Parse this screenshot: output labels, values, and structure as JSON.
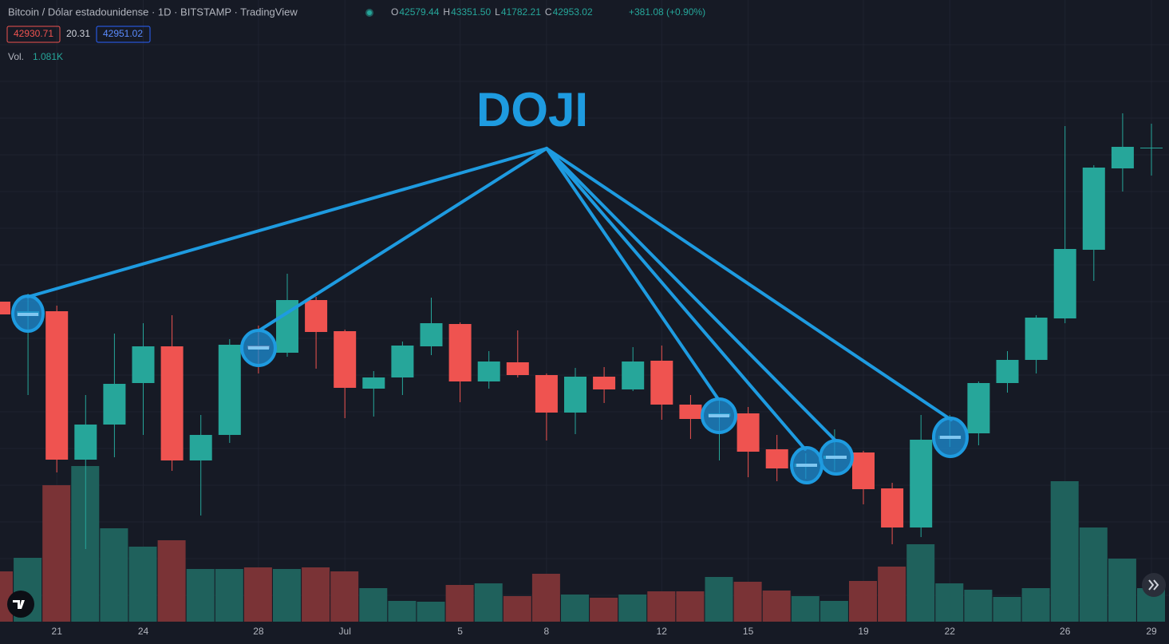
{
  "header": {
    "symbol": "Bitcoin / Dólar estadounidense · 1D · BITSTAMP · TradingView",
    "ohlc": [
      {
        "label": "O",
        "value": "42579.44"
      },
      {
        "label": "H",
        "value": "43351.50"
      },
      {
        "label": "L",
        "value": "41782.21"
      },
      {
        "label": "C",
        "value": "42953.02"
      }
    ],
    "change": "+381.08 (+0.90%)",
    "bid": "42930.71",
    "spread": "20.31",
    "ask": "42951.02",
    "volume_label": "Vol.",
    "volume_value": "1.081K"
  },
  "chart_data": {
    "type": "candlestick",
    "annotation": "DOJI",
    "categories": [
      null,
      null,
      "21",
      null,
      null,
      "24",
      null,
      null,
      null,
      "28",
      null,
      null,
      "Jul",
      null,
      null,
      null,
      "5",
      null,
      null,
      "8",
      null,
      null,
      null,
      "12",
      null,
      null,
      "15",
      null,
      null,
      null,
      "19",
      null,
      null,
      "22",
      null,
      null,
      null,
      "26",
      null,
      null,
      "29"
    ],
    "open": [
      37689,
      37203,
      37365,
      32343,
      33531,
      34935,
      36177,
      32316,
      33180,
      36204,
      35961,
      37743,
      36690,
      34746,
      35124,
      36177,
      36933,
      34989,
      35637,
      35205,
      33936,
      35151,
      34719,
      35691,
      34206,
      33801,
      33909,
      32694,
      32100,
      32370,
      32586,
      31371,
      30048,
      33045,
      33234,
      34935,
      35718,
      37122,
      39444,
      42198,
      42900
    ],
    "high": [
      37770,
      37959,
      37554,
      34530,
      36609,
      36960,
      37230,
      33855,
      36420,
      36879,
      38634,
      37851,
      36744,
      35340,
      36339,
      37824,
      36987,
      36015,
      36717,
      35259,
      35448,
      35475,
      36150,
      36204,
      34530,
      34395,
      34125,
      33180,
      32559,
      33369,
      32640,
      31560,
      33855,
      33855,
      34989,
      36015,
      37230,
      43629,
      42306,
      44061,
      43710
    ],
    "low": [
      37203,
      34530,
      31911,
      29319,
      32424,
      33180,
      31965,
      30453,
      32910,
      35259,
      35826,
      35421,
      33747,
      33801,
      34530,
      35880,
      34287,
      34746,
      35124,
      32991,
      33207,
      34260,
      34665,
      33693,
      33045,
      32316,
      31749,
      31614,
      31695,
      31965,
      30831,
      29481,
      29724,
      32775,
      32829,
      34611,
      35259,
      36960,
      38391,
      41415,
      41955
    ],
    "close": [
      37257,
      37365,
      32343,
      33531,
      34908,
      36177,
      32316,
      33180,
      36231,
      36096,
      37743,
      36663,
      34773,
      35124,
      36204,
      36960,
      34989,
      35664,
      35205,
      33936,
      35151,
      34719,
      35664,
      34206,
      33720,
      33909,
      32613,
      32046,
      32208,
      32478,
      31344,
      30048,
      33018,
      33153,
      34935,
      35718,
      37149,
      39471,
      42225,
      42927,
      42900
    ],
    "volume": [
      63,
      80,
      171,
      195,
      117,
      94,
      102,
      66,
      66,
      68,
      66,
      68,
      63,
      42,
      26,
      25,
      46,
      48,
      32,
      60,
      34,
      30,
      34,
      38,
      38,
      56,
      50,
      39,
      32,
      26,
      51,
      69,
      97,
      48,
      40,
      31,
      42,
      176,
      118,
      79,
      42
    ],
    "up_color": "#26a69a",
    "down_color": "#ef5350",
    "volume_up_color": "#1f615c",
    "volume_down_color": "#7a3336",
    "grid": true
  }
}
